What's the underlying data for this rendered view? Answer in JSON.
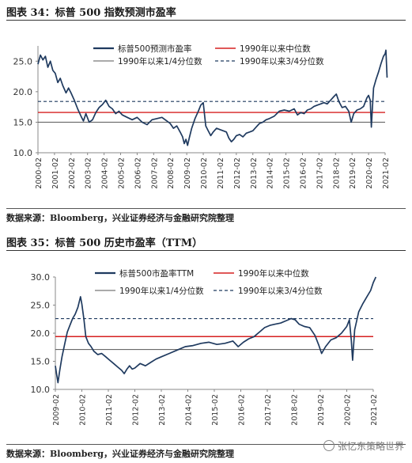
{
  "watermark": "张忆东策略世界",
  "figure1": {
    "title": "图表 34：标普 500 指数预测市盈率",
    "source": "数据来源：Bloomberg，兴业证券经济与金融研究院整理"
  },
  "figure2": {
    "title": "图表 35：标普 500 历史市盈率（TTM）",
    "source": "数据来源：Bloomberg，兴业证券经济与金融研究院整理"
  },
  "colors": {
    "series": "#1f3a5f",
    "median": "#d62020",
    "q1": "#555555",
    "q3": "#1f3a5f"
  },
  "chart_data": [
    {
      "type": "line",
      "title": "",
      "ylim": [
        10,
        27.5
      ],
      "yticks": [
        "10.0",
        "15.0",
        "20.0",
        "25.0"
      ],
      "ytick_values": [
        10,
        15,
        20,
        25
      ],
      "xticks": [
        "2000-02",
        "2001-02",
        "2002-02",
        "2003-02",
        "2004-02",
        "2005-02",
        "2006-02",
        "2007-02",
        "2008-02",
        "2009-02",
        "2010-02",
        "2011-02",
        "2012-02",
        "2013-02",
        "2014-02",
        "2015-02",
        "2016-02",
        "2017-02",
        "2018-02",
        "2019-02",
        "2020-02",
        "2021-02"
      ],
      "xtick_values": [
        2000,
        2001,
        2002,
        2003,
        2004,
        2005,
        2006,
        2007,
        2008,
        2009,
        2010,
        2011,
        2012,
        2013,
        2014,
        2015,
        2016,
        2017,
        2018,
        2019,
        2020,
        2021
      ],
      "xlim": [
        2000,
        2021
      ],
      "legend": {
        "position": "top",
        "series": "标普500预测市盈率",
        "median": "1990年以来中位数",
        "q1": "1990年以来1/4分位数",
        "q3": "1990年以来3/4分位数"
      },
      "reference_lines": {
        "median": 16.6,
        "q1": 15.0,
        "q3": 18.4
      },
      "series": [
        {
          "name": "标普500预测市盈率",
          "x": [
            2000.0,
            2000.15,
            2000.3,
            2000.45,
            2000.6,
            2000.75,
            2000.9,
            2001.05,
            2001.2,
            2001.35,
            2001.5,
            2001.7,
            2001.85,
            2002.0,
            2002.2,
            2002.4,
            2002.6,
            2002.75,
            2002.9,
            2003.1,
            2003.3,
            2003.5,
            2003.7,
            2003.9,
            2004.1,
            2004.3,
            2004.5,
            2004.7,
            2004.9,
            2005.1,
            2005.4,
            2005.7,
            2006.0,
            2006.3,
            2006.6,
            2006.9,
            2007.2,
            2007.5,
            2007.8,
            2008.0,
            2008.2,
            2008.4,
            2008.6,
            2008.75,
            2008.85,
            2008.95,
            2009.05,
            2009.15,
            2009.3,
            2009.5,
            2009.7,
            2009.85,
            2010.0,
            2010.15,
            2010.3,
            2010.45,
            2010.6,
            2010.8,
            2011.0,
            2011.2,
            2011.4,
            2011.55,
            2011.7,
            2011.85,
            2012.0,
            2012.2,
            2012.4,
            2012.6,
            2012.8,
            2013.0,
            2013.2,
            2013.4,
            2013.6,
            2013.8,
            2014.0,
            2014.3,
            2014.6,
            2014.9,
            2015.2,
            2015.5,
            2015.7,
            2015.9,
            2016.1,
            2016.3,
            2016.5,
            2016.7,
            2016.9,
            2017.1,
            2017.3,
            2017.5,
            2017.7,
            2017.9,
            2018.05,
            2018.2,
            2018.4,
            2018.6,
            2018.8,
            2018.95,
            2019.1,
            2019.3,
            2019.5,
            2019.7,
            2019.9,
            2020.0,
            2020.1,
            2020.17,
            2020.22,
            2020.3,
            2020.45,
            2020.6,
            2020.75,
            2020.9,
            2021.0,
            2021.05,
            2021.12
          ],
          "values": [
            24.5,
            26.0,
            25.2,
            25.8,
            24.0,
            25.0,
            23.5,
            23.0,
            21.5,
            22.2,
            21.0,
            19.8,
            20.6,
            19.8,
            18.6,
            17.2,
            16.0,
            15.2,
            16.4,
            15.0,
            15.4,
            16.6,
            17.4,
            17.9,
            18.6,
            17.6,
            17.2,
            16.4,
            16.8,
            16.2,
            15.8,
            15.4,
            15.8,
            15.0,
            14.6,
            15.4,
            15.6,
            15.8,
            15.2,
            14.8,
            14.0,
            14.4,
            13.4,
            12.6,
            11.5,
            12.2,
            11.2,
            12.4,
            14.0,
            15.6,
            16.8,
            17.8,
            18.2,
            14.4,
            13.6,
            12.8,
            13.4,
            14.0,
            13.8,
            13.6,
            13.4,
            12.4,
            11.8,
            12.2,
            12.8,
            13.0,
            12.6,
            13.2,
            13.4,
            13.6,
            14.2,
            14.8,
            15.0,
            15.4,
            15.6,
            16.0,
            16.8,
            17.0,
            16.8,
            17.2,
            16.2,
            16.6,
            16.4,
            17.0,
            17.2,
            17.6,
            17.8,
            18.0,
            18.2,
            18.0,
            18.6,
            19.2,
            19.6,
            18.4,
            17.4,
            17.6,
            16.8,
            15.0,
            16.4,
            17.0,
            17.2,
            17.6,
            19.0,
            19.4,
            18.6,
            14.2,
            16.8,
            20.6,
            22.0,
            23.2,
            24.6,
            25.8,
            26.2,
            26.8,
            22.3
          ]
        }
      ]
    },
    {
      "type": "line",
      "title": "",
      "ylim": [
        10,
        30
      ],
      "yticks": [
        "10.0",
        "15.0",
        "20.0",
        "25.0",
        "30.0"
      ],
      "ytick_values": [
        10,
        15,
        20,
        25,
        30
      ],
      "xticks": [
        "2009-02",
        "2010-02",
        "2011-02",
        "2012-02",
        "2013-02",
        "2014-02",
        "2015-02",
        "2016-02",
        "2017-02",
        "2018-02",
        "2019-02",
        "2020-02",
        "2021-02"
      ],
      "xtick_values": [
        2009,
        2010,
        2011,
        2012,
        2013,
        2014,
        2015,
        2016,
        2017,
        2018,
        2019,
        2020,
        2021
      ],
      "xlim": [
        2009,
        2021
      ],
      "legend": {
        "position": "top",
        "series": "标普500市盈率TTM",
        "median": "1990年以来中位数",
        "q1": "1990年以来1/4分位数",
        "q3": "1990年以来3/4分位数"
      },
      "reference_lines": {
        "median": 19.4,
        "q1": 17.1,
        "q3": 22.6
      },
      "series": [
        {
          "name": "标普500市盈率TTM",
          "x": [
            2009.0,
            2009.05,
            2009.1,
            2009.17,
            2009.25,
            2009.35,
            2009.45,
            2009.55,
            2009.65,
            2009.75,
            2009.85,
            2009.95,
            2010.0,
            2010.08,
            2010.15,
            2010.25,
            2010.35,
            2010.45,
            2010.6,
            2010.75,
            2010.9,
            2011.05,
            2011.2,
            2011.35,
            2011.5,
            2011.6,
            2011.7,
            2011.8,
            2011.9,
            2012.0,
            2012.2,
            2012.4,
            2012.6,
            2012.8,
            2013.0,
            2013.3,
            2013.6,
            2013.9,
            2014.2,
            2014.5,
            2014.8,
            2015.1,
            2015.4,
            2015.7,
            2015.9,
            2016.1,
            2016.3,
            2016.5,
            2016.7,
            2016.9,
            2017.1,
            2017.3,
            2017.5,
            2017.7,
            2017.9,
            2018.05,
            2018.2,
            2018.4,
            2018.6,
            2018.8,
            2018.95,
            2019.05,
            2019.2,
            2019.4,
            2019.6,
            2019.8,
            2020.0,
            2020.1,
            2020.17,
            2020.22,
            2020.3,
            2020.45,
            2020.6,
            2020.75,
            2020.9,
            2021.0,
            2021.1
          ],
          "values": [
            14.2,
            12.6,
            11.2,
            13.5,
            15.8,
            18.0,
            20.2,
            21.4,
            22.6,
            23.4,
            24.6,
            26.5,
            25.2,
            22.4,
            19.4,
            18.2,
            17.6,
            16.8,
            16.2,
            16.4,
            15.8,
            15.2,
            14.6,
            14.0,
            13.4,
            12.8,
            13.6,
            14.2,
            13.6,
            13.8,
            14.6,
            14.2,
            14.8,
            15.4,
            15.8,
            16.4,
            17.0,
            17.6,
            17.8,
            18.2,
            18.4,
            18.0,
            18.2,
            18.6,
            17.6,
            18.4,
            19.0,
            19.4,
            20.2,
            21.0,
            21.4,
            21.6,
            21.8,
            22.2,
            22.6,
            22.4,
            21.6,
            21.2,
            21.0,
            19.6,
            17.8,
            16.4,
            17.6,
            18.8,
            19.2,
            20.0,
            21.2,
            22.4,
            18.8,
            15.2,
            20.6,
            23.8,
            25.2,
            26.4,
            27.6,
            29.0,
            30.0
          ]
        }
      ]
    }
  ]
}
